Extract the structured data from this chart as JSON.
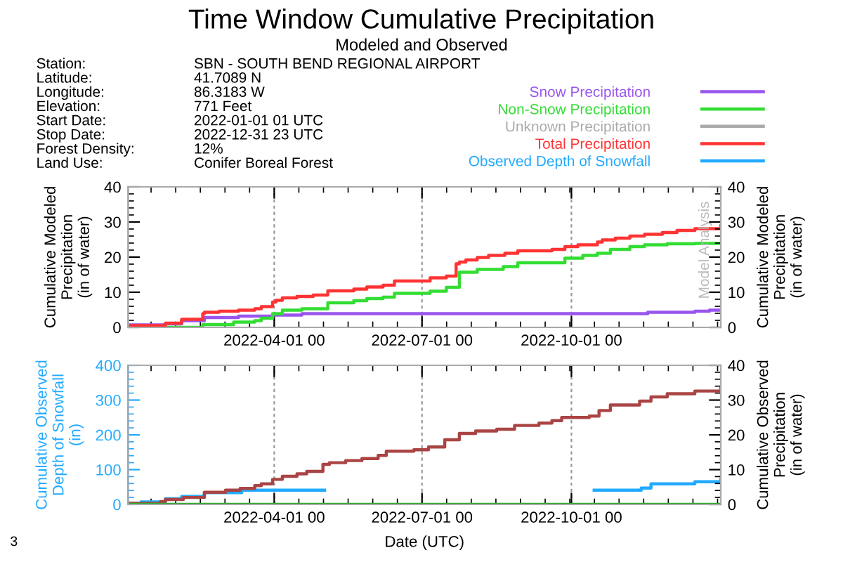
{
  "chart_data": [
    {
      "type": "step",
      "title": "Time Window Cumulative Precipitation",
      "subtitle": "Modeled and Observed",
      "ylabel": "Cumulative Modeled\nPrecipitation\n(in of water)",
      "y2label": "Cumulative Modeled\nPrecipitation\n(in of water)",
      "annotations": [
        "Station:",
        "SBN - SOUTH BEND REGIONAL AIRPORT",
        "Latitude:",
        "41.7089 N",
        "Longitude:",
        "86.3183 W",
        "Elevation:",
        "771 Feet",
        "Start Date:",
        "2022-01-01 01 UTC",
        "Stop Date:",
        "2022-12-31 23 UTC",
        "Forest Density:",
        "12%",
        "Land Use:",
        "Conifer Boreal Forest",
        "Model Analysis"
      ],
      "xlim": [
        "2022-01-01T01:00",
        "2022-12-31T23:00"
      ],
      "xticks": [
        {
          "value": "2022-04-01",
          "label": "2022-04-01 00"
        },
        {
          "value": "2022-07-01",
          "label": "2022-07-01 00"
        },
        {
          "value": "2022-10-01",
          "label": "2022-10-01 00"
        }
      ],
      "ylim": [
        0,
        40
      ],
      "yticks": [
        0,
        10,
        20,
        30,
        40
      ],
      "y2lim": [
        0,
        40
      ],
      "y2ticks": [
        0,
        10,
        20,
        30,
        40
      ],
      "grid": "x",
      "legend": "top right",
      "series": [
        {
          "name": "Snow Precipitation",
          "color": "#9955ee",
          "x": [
            "2022-01-01T01:00",
            "2022-01-24",
            "2022-02-03",
            "2022-02-17",
            "2022-03-10",
            "2022-03-31",
            "2022-04-18",
            "2022-11-17",
            "2022-12-16",
            "2022-12-25",
            "2022-12-31T23:00"
          ],
          "values": [
            0.7,
            1.0,
            1.9,
            2.8,
            3.2,
            3.5,
            3.9,
            4.3,
            4.6,
            4.9,
            4.9
          ]
        },
        {
          "name": "Non-Snow Precipitation",
          "color": "#33dd33",
          "x": [
            "2022-01-01T01:00",
            "2022-02-16",
            "2022-03-07",
            "2022-03-20",
            "2022-03-24",
            "2022-03-31",
            "2022-04-06",
            "2022-04-18",
            "2022-05-04",
            "2022-05-20",
            "2022-05-28",
            "2022-06-07",
            "2022-06-14",
            "2022-07-06",
            "2022-07-16",
            "2022-07-24",
            "2022-08-04",
            "2022-08-20",
            "2022-08-29",
            "2022-09-27",
            "2022-10-08",
            "2022-10-17",
            "2022-10-25",
            "2022-11-06",
            "2022-11-15",
            "2022-11-29",
            "2022-12-16",
            "2022-12-31T23:00"
          ],
          "values": [
            0,
            0.8,
            1.5,
            1.9,
            2.6,
            3.9,
            4.9,
            5.3,
            7.0,
            7.6,
            8.2,
            8.6,
            9.7,
            10.3,
            11.4,
            15.7,
            16.5,
            17.3,
            18.4,
            19.7,
            20.5,
            21.1,
            22.2,
            23.0,
            23.5,
            23.8,
            23.9,
            23.9
          ]
        },
        {
          "name": "Unknown Precipitation",
          "color": "#aaaaaa"
        },
        {
          "name": "Total Precipitation",
          "color": "#ff3333",
          "x": [
            "2022-01-01T01:00",
            "2022-01-24",
            "2022-02-03",
            "2022-02-16",
            "2022-02-17",
            "2022-02-26",
            "2022-03-10",
            "2022-03-20",
            "2022-03-24",
            "2022-03-31",
            "2022-04-02",
            "2022-04-06",
            "2022-04-15",
            "2022-04-25",
            "2022-05-04",
            "2022-05-20",
            "2022-05-28",
            "2022-06-07",
            "2022-06-14",
            "2022-07-06",
            "2022-07-16",
            "2022-07-22",
            "2022-07-24",
            "2022-07-28",
            "2022-08-04",
            "2022-08-11",
            "2022-08-21",
            "2022-08-29",
            "2022-09-19",
            "2022-09-27",
            "2022-10-05",
            "2022-10-17",
            "2022-10-20",
            "2022-10-28",
            "2022-11-06",
            "2022-11-15",
            "2022-11-26",
            "2022-12-05",
            "2022-12-16",
            "2022-12-31T23:00"
          ],
          "values": [
            0.5,
            1.2,
            2.3,
            3.9,
            4.3,
            4.6,
            4.9,
            5.3,
            5.9,
            7.2,
            7.7,
            8.4,
            8.8,
            9.2,
            10.4,
            10.9,
            11.5,
            12.0,
            13.2,
            14.1,
            14.6,
            18.1,
            18.6,
            19.2,
            19.9,
            20.5,
            21.1,
            21.8,
            22.2,
            23.0,
            23.5,
            24.3,
            24.9,
            25.4,
            26.0,
            26.5,
            27.0,
            27.6,
            28.1,
            28.9
          ]
        }
      ]
    },
    {
      "type": "step",
      "xlabel": "Date (UTC)",
      "ylabel": "Cumulative Observed\nDepth of Snowfall\n(in)",
      "y2label": "Cumulative Observed\nPrecipitation\n(in of water)",
      "annotations": [
        "3"
      ],
      "xlim": [
        "2022-01-01T01:00",
        "2022-12-31T23:00"
      ],
      "xticks": [
        {
          "value": "2022-04-01",
          "label": "2022-04-01 00"
        },
        {
          "value": "2022-07-01",
          "label": "2022-07-01 00"
        },
        {
          "value": "2022-10-01",
          "label": "2022-10-01 00"
        }
      ],
      "ylim": [
        0,
        400
      ],
      "yticks": [
        0,
        100,
        200,
        300,
        400
      ],
      "y2lim": [
        0,
        40
      ],
      "y2ticks": [
        0,
        10,
        20,
        30,
        40
      ],
      "grid": "x",
      "legend": "top right",
      "series": [
        {
          "name": "Observed Depth of Snowfall",
          "color": "#22aaff",
          "x": [
            "2022-01-01T01:00",
            "2022-01-09",
            "2022-01-24",
            "2022-02-03",
            "2022-02-17",
            "2022-03-12",
            "2022-05-01",
            "2022-05-02",
            "2022-10-15",
            "2022-11-13",
            "2022-11-19",
            "2022-12-16",
            "2022-12-31T23:00"
          ],
          "values": [
            3,
            7,
            16,
            23,
            34,
            41,
            41,
            null,
            41,
            47,
            59,
            65,
            73
          ]
        },
        {
          "color": "#aa4444",
          "axis": "y2",
          "x": [
            "2022-01-01T01:00",
            "2022-01-21",
            "2022-01-24",
            "2022-02-04",
            "2022-02-17",
            "2022-03-02",
            "2022-03-11",
            "2022-03-20",
            "2022-03-24",
            "2022-03-31",
            "2022-04-06",
            "2022-04-15",
            "2022-04-21",
            "2022-05-01",
            "2022-05-05",
            "2022-05-15",
            "2022-05-25",
            "2022-06-04",
            "2022-06-09",
            "2022-06-26",
            "2022-07-05",
            "2022-07-15",
            "2022-07-24",
            "2022-08-03",
            "2022-08-16",
            "2022-08-27",
            "2022-09-11",
            "2022-09-19",
            "2022-09-25",
            "2022-10-12",
            "2022-10-18",
            "2022-10-25",
            "2022-11-12",
            "2022-11-19",
            "2022-11-29",
            "2022-12-16",
            "2022-12-31T23:00"
          ],
          "values": [
            0.3,
            0.8,
            1.4,
            2.0,
            3.5,
            4.1,
            4.6,
            5.4,
            5.9,
            7.2,
            8.1,
            8.8,
            9.5,
            11.5,
            12.0,
            12.6,
            13.2,
            14.1,
            15.3,
            15.7,
            16.5,
            18.6,
            20.4,
            21.1,
            21.6,
            22.7,
            23.4,
            24.1,
            25.0,
            25.4,
            27.0,
            28.6,
            29.7,
            30.9,
            31.8,
            32.6,
            33.5
          ]
        },
        {
          "color": "#22aa22",
          "axis": "y2",
          "x": [
            "2022-01-01T01:00",
            "2022-12-31T23:00"
          ],
          "values": [
            0,
            0
          ]
        }
      ]
    }
  ]
}
